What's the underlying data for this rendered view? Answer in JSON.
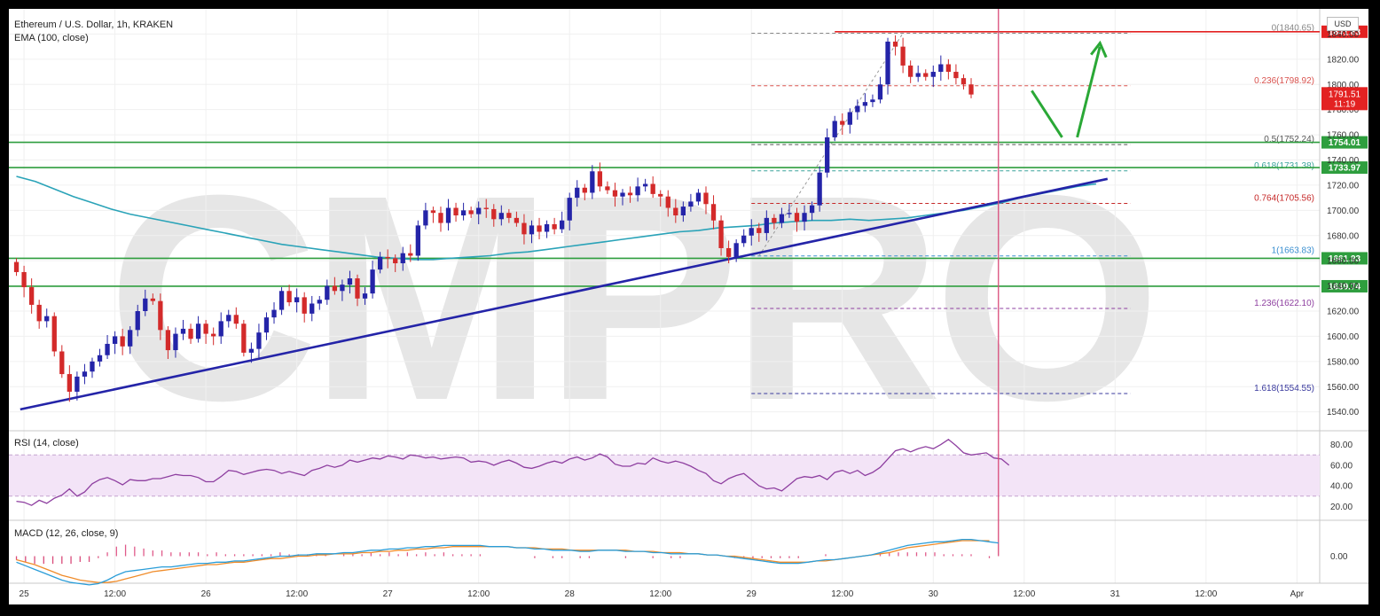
{
  "header": {
    "symbol_line": "Ethereum / U.S. Dollar, 1h, KRAKEN",
    "ema_label": "EMA (100, close)",
    "currency": "USD",
    "watermark": "CMPRO"
  },
  "rsi": {
    "label": "RSI (14, close)",
    "ticks": [
      80,
      60,
      40,
      20
    ],
    "band": [
      30,
      70
    ],
    "values": [
      25,
      24,
      21,
      26,
      23,
      28,
      31,
      37,
      30,
      34,
      42,
      46,
      48,
      45,
      41,
      46,
      45,
      45,
      47,
      47,
      49,
      51,
      50,
      50,
      48,
      44,
      44,
      49,
      55,
      54,
      51,
      53,
      55,
      56,
      55,
      52,
      54,
      52,
      50,
      55,
      57,
      60,
      58,
      60,
      65,
      63,
      65,
      67,
      66,
      69,
      68,
      66,
      70,
      69,
      67,
      68,
      66,
      67,
      68,
      67,
      63,
      64,
      63,
      60,
      63,
      65,
      62,
      58,
      57,
      59,
      62,
      64,
      62,
      66,
      68,
      65,
      67,
      71,
      68,
      61,
      59,
      59,
      62,
      61,
      67,
      64,
      62,
      64,
      62,
      59,
      55,
      52,
      45,
      42,
      47,
      50,
      52,
      46,
      40,
      37,
      38,
      35,
      41,
      47,
      49,
      48,
      50,
      46,
      53,
      55,
      52,
      55,
      50,
      53,
      58,
      66,
      74,
      76,
      73,
      76,
      78,
      76,
      80,
      85,
      79,
      72,
      70,
      71,
      72,
      67,
      66,
      60
    ],
    "colors": {
      "line": "#8e3fa0",
      "band": "#f3e4f7",
      "band_edge": "#c5a3cf"
    }
  },
  "macd": {
    "label": "MACD (12, 26, close, 9)",
    "ticks": [
      "0.00"
    ],
    "macd_line": [
      -5,
      -8,
      -11,
      -14,
      -17,
      -20,
      -22,
      -23,
      -24,
      -23,
      -20,
      -16,
      -13,
      -12,
      -11,
      -10,
      -9,
      -9,
      -8,
      -7,
      -6,
      -6,
      -5,
      -5,
      -4,
      -4,
      -3,
      -2,
      -1,
      0,
      0,
      1,
      1,
      2,
      2,
      2,
      3,
      3,
      4,
      5,
      5,
      6,
      6,
      7,
      7,
      8,
      8,
      9,
      9,
      9,
      9,
      9,
      8,
      8,
      8,
      7,
      7,
      6,
      6,
      5,
      5,
      5,
      4,
      4,
      5,
      5,
      5,
      4,
      4,
      4,
      3,
      3,
      2,
      2,
      2,
      2,
      1,
      1,
      0,
      -1,
      -2,
      -3,
      -4,
      -5,
      -6,
      -6,
      -6,
      -5,
      -4,
      -3,
      -3,
      -2,
      -1,
      0,
      1,
      3,
      5,
      7,
      9,
      10,
      11,
      12,
      12,
      13,
      14,
      14,
      13,
      12,
      11
    ],
    "signal_line": [
      -3,
      -5,
      -7,
      -10,
      -13,
      -16,
      -18,
      -20,
      -21,
      -22,
      -22,
      -21,
      -19,
      -17,
      -15,
      -13,
      -12,
      -11,
      -10,
      -9,
      -8,
      -7,
      -7,
      -6,
      -5,
      -5,
      -4,
      -3,
      -2,
      -2,
      -1,
      0,
      0,
      1,
      1,
      2,
      2,
      2,
      3,
      3,
      4,
      4,
      5,
      5,
      6,
      6,
      7,
      7,
      8,
      8,
      8,
      8,
      8,
      8,
      8,
      7,
      7,
      7,
      6,
      6,
      6,
      5,
      5,
      5,
      5,
      5,
      5,
      5,
      4,
      4,
      4,
      3,
      3,
      3,
      2,
      2,
      1,
      1,
      0,
      0,
      -1,
      -2,
      -3,
      -4,
      -5,
      -5,
      -5,
      -5,
      -4,
      -4,
      -3,
      -2,
      -1,
      0,
      1,
      2,
      3,
      5,
      7,
      8,
      9,
      10,
      11,
      12,
      13,
      13,
      13,
      13
    ],
    "colors": {
      "macd": "#2a9dd8",
      "signal": "#f08c2a",
      "hist_pos": "#e05a8a",
      "hist_neg": "#d94b7a"
    }
  },
  "chart_data": {
    "type": "candlestick",
    "title": "Ethereum / U.S. Dollar, 1h, KRAKEN",
    "interval": "1h",
    "ylim": [
      1525,
      1860
    ],
    "y_ticks": [
      "1840.00",
      "1820.00",
      "1800.00",
      "1780.00",
      "1760.00",
      "1740.00",
      "1720.00",
      "1700.00",
      "1680.00",
      "1660.00",
      "1640.00",
      "1620.00",
      "1600.00",
      "1580.00",
      "1560.00",
      "1540.00"
    ],
    "x_ticks": [
      {
        "label": "25",
        "t": 1
      },
      {
        "label": "12:00",
        "t": 13
      },
      {
        "label": "26",
        "t": 25
      },
      {
        "label": "12:00",
        "t": 37
      },
      {
        "label": "27",
        "t": 49
      },
      {
        "label": "12:00",
        "t": 61
      },
      {
        "label": "28",
        "t": 73
      },
      {
        "label": "12:00",
        "t": 85
      },
      {
        "label": "29",
        "t": 97
      },
      {
        "label": "12:00",
        "t": 109
      },
      {
        "label": "30",
        "t": 121
      },
      {
        "label": "12:00",
        "t": 133
      },
      {
        "label": "31",
        "t": 145
      },
      {
        "label": "12:00",
        "t": 157
      },
      {
        "label": "Apr",
        "t": 169
      }
    ],
    "t_range": [
      -1,
      172
    ],
    "close": [
      1651,
      1639,
      1625,
      1612,
      1616,
      1588,
      1570,
      1556,
      1568,
      1572,
      1580,
      1585,
      1594,
      1600,
      1592,
      1605,
      1620,
      1630,
      1628,
      1605,
      1589,
      1602,
      1606,
      1598,
      1610,
      1602,
      1600,
      1612,
      1617,
      1610,
      1587,
      1590,
      1603,
      1615,
      1621,
      1636,
      1627,
      1631,
      1618,
      1626,
      1629,
      1640,
      1636,
      1641,
      1646,
      1630,
      1634,
      1653,
      1663,
      1662,
      1658,
      1666,
      1664,
      1688,
      1700,
      1698,
      1690,
      1702,
      1696,
      1700,
      1697,
      1702,
      1701,
      1693,
      1698,
      1694,
      1690,
      1681,
      1688,
      1683,
      1689,
      1685,
      1692,
      1710,
      1718,
      1714,
      1731,
      1719,
      1716,
      1711,
      1714,
      1712,
      1719,
      1721,
      1713,
      1711,
      1702,
      1696,
      1703,
      1707,
      1714,
      1705,
      1692,
      1670,
      1663,
      1674,
      1680,
      1686,
      1682,
      1694,
      1690,
      1697,
      1698,
      1691,
      1698,
      1704,
      1730,
      1758,
      1771,
      1768,
      1778,
      1783,
      1786,
      1788,
      1800,
      1834,
      1830,
      1815,
      1806,
      1809,
      1806,
      1810,
      1816,
      1810,
      1805,
      1800,
      1792
    ],
    "series": [
      {
        "name": "EMA (100, close)",
        "values": [
          1727,
          1723,
          1717,
          1711,
          1706,
          1701,
          1697,
          1694,
          1691,
          1688,
          1685,
          1682,
          1679,
          1676,
          1673,
          1671,
          1669,
          1667,
          1665,
          1663,
          1662,
          1661,
          1661,
          1662,
          1663,
          1664,
          1666,
          1667,
          1669,
          1671,
          1673,
          1675,
          1677,
          1679,
          1681,
          1683,
          1684,
          1686,
          1687,
          1688,
          1690,
          1691,
          1692,
          1692,
          1693,
          1692,
          1693,
          1694,
          1696,
          1698,
          1700,
          1703,
          1706,
          1710,
          1713,
          1716,
          1719,
          1721
        ]
      }
    ],
    "current_price": {
      "value": "1791.51",
      "countdown": "11:19",
      "color": "#e32222"
    },
    "horizontal_levels": [
      {
        "label": "1841.83",
        "value": 1841.83,
        "color": "#e32222"
      },
      {
        "label": "1754.01",
        "value": 1754.01,
        "color": "#2e9e3e"
      },
      {
        "label": "1733.97",
        "value": 1733.97,
        "color": "#2e9e3e"
      },
      {
        "label": "1661.93",
        "value": 1661.93,
        "color": "#2e9e3e"
      },
      {
        "label": "1639.74",
        "value": 1639.74,
        "color": "#2e9e3e"
      }
    ],
    "fibonacci": [
      {
        "label": "0(1840.65)",
        "value": 1840.65,
        "color": "#888888"
      },
      {
        "label": "0.236(1798.92)",
        "value": 1798.92,
        "color": "#d9534f"
      },
      {
        "label": "0.5(1752.24)",
        "value": 1752.24,
        "color": "#555555"
      },
      {
        "label": "0.618(1731.38)",
        "value": 1731.38,
        "color": "#3aa39b"
      },
      {
        "label": "0.764(1705.56)",
        "value": 1705.56,
        "color": "#c62828"
      },
      {
        "label": "1(1663.83)",
        "value": 1663.83,
        "color": "#3a8fd0"
      },
      {
        "label": "1.236(1622.10)",
        "value": 1622.1,
        "color": "#8e3fa0"
      },
      {
        "label": "1.618(1554.55)",
        "value": 1554.55,
        "color": "#3a3a9e"
      }
    ],
    "trendline": {
      "from": {
        "t": 0.5,
        "price": 1542
      },
      "to": {
        "t": 144,
        "price": 1725
      },
      "color": "#2424a8"
    },
    "arrows": {
      "color": "#2aa836",
      "down": {
        "from": {
          "t": 134,
          "price": 1795
        },
        "to": {
          "t": 138,
          "price": 1758
        }
      },
      "up": {
        "from": {
          "t": 140,
          "price": 1758
        },
        "to": {
          "t": 143,
          "price": 1830
        }
      }
    },
    "colors": {
      "up": "#2424a8",
      "down": "#d32a2a",
      "ema": "#2aa3b8"
    },
    "grid": true
  }
}
